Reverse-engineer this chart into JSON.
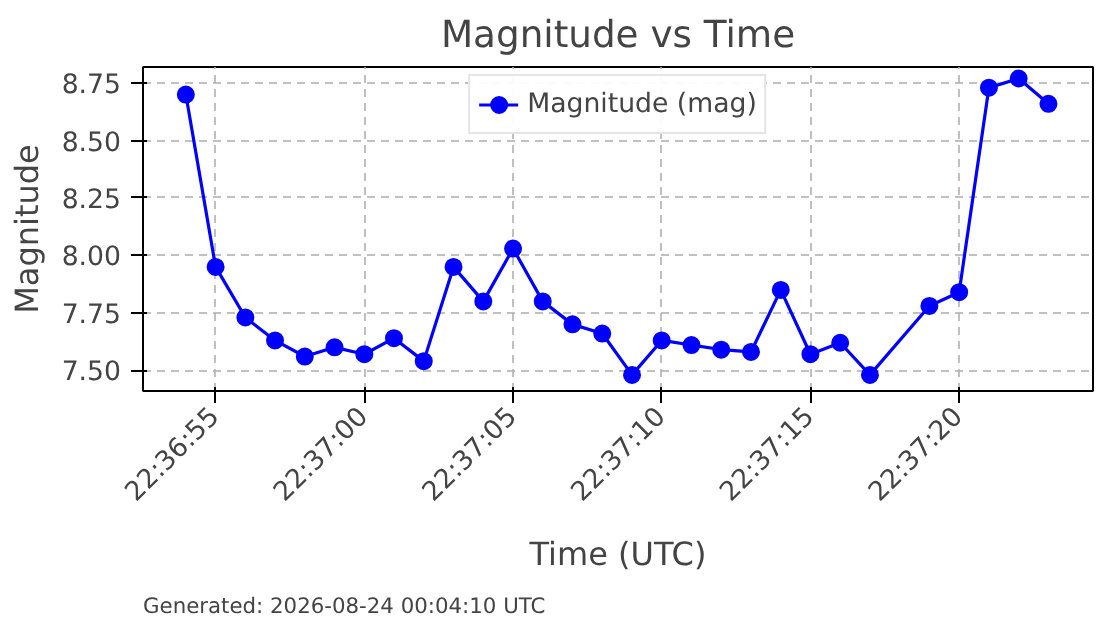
{
  "chart_data": {
    "type": "line",
    "title": "Magnitude vs Time",
    "xlabel": "Time (UTC)",
    "ylabel": "Magnitude",
    "x": [
      22.615,
      22.615278,
      22.615556,
      22.615833,
      22.616111,
      22.616389,
      22.616667,
      22.616944,
      22.617222,
      22.6175,
      22.617778,
      22.618056,
      22.618333,
      22.618611,
      22.618889,
      22.619167,
      22.619444,
      22.619722,
      22.62,
      22.620278,
      22.620556,
      22.620833,
      22.621111,
      22.621389,
      22.621944,
      22.622222,
      22.6225,
      22.622778,
      22.623056
    ],
    "series": [
      {
        "name": "Magnitude (mag)",
        "color": "#0000ff",
        "values": [
          8.7,
          7.95,
          7.73,
          7.63,
          7.56,
          7.6,
          7.57,
          7.64,
          7.54,
          7.95,
          7.8,
          8.03,
          7.8,
          7.7,
          7.66,
          7.48,
          7.63,
          7.61,
          7.59,
          7.58,
          7.85,
          7.57,
          7.62,
          7.48,
          7.78,
          7.84,
          8.73,
          8.77,
          8.66
        ]
      }
    ],
    "xlim": [
      22.6146,
      22.623472
    ],
    "ylim": [
      7.41,
      8.82
    ],
    "xticks": [
      {
        "value": 22.615278,
        "label": "22:36:55"
      },
      {
        "value": 22.616667,
        "label": "22:37:00"
      },
      {
        "value": 22.618056,
        "label": "22:37:05"
      },
      {
        "value": 22.619444,
        "label": "22:37:10"
      },
      {
        "value": 22.620833,
        "label": "22:37:15"
      },
      {
        "value": 22.622222,
        "label": "22:37:20"
      }
    ],
    "yticks": [
      {
        "value": 7.5,
        "label": "7.50"
      },
      {
        "value": 7.75,
        "label": "7.75"
      },
      {
        "value": 8.0,
        "label": "8.00"
      },
      {
        "value": 8.25,
        "label": "8.25"
      },
      {
        "value": 8.5,
        "label": "8.50"
      },
      {
        "value": 8.75,
        "label": "8.75"
      }
    ],
    "grid": true,
    "legend": "top",
    "marker": "circle",
    "line_style": "solid",
    "annotations": [
      "Generated: 2026-08-24 00:04:10 UTC"
    ]
  }
}
